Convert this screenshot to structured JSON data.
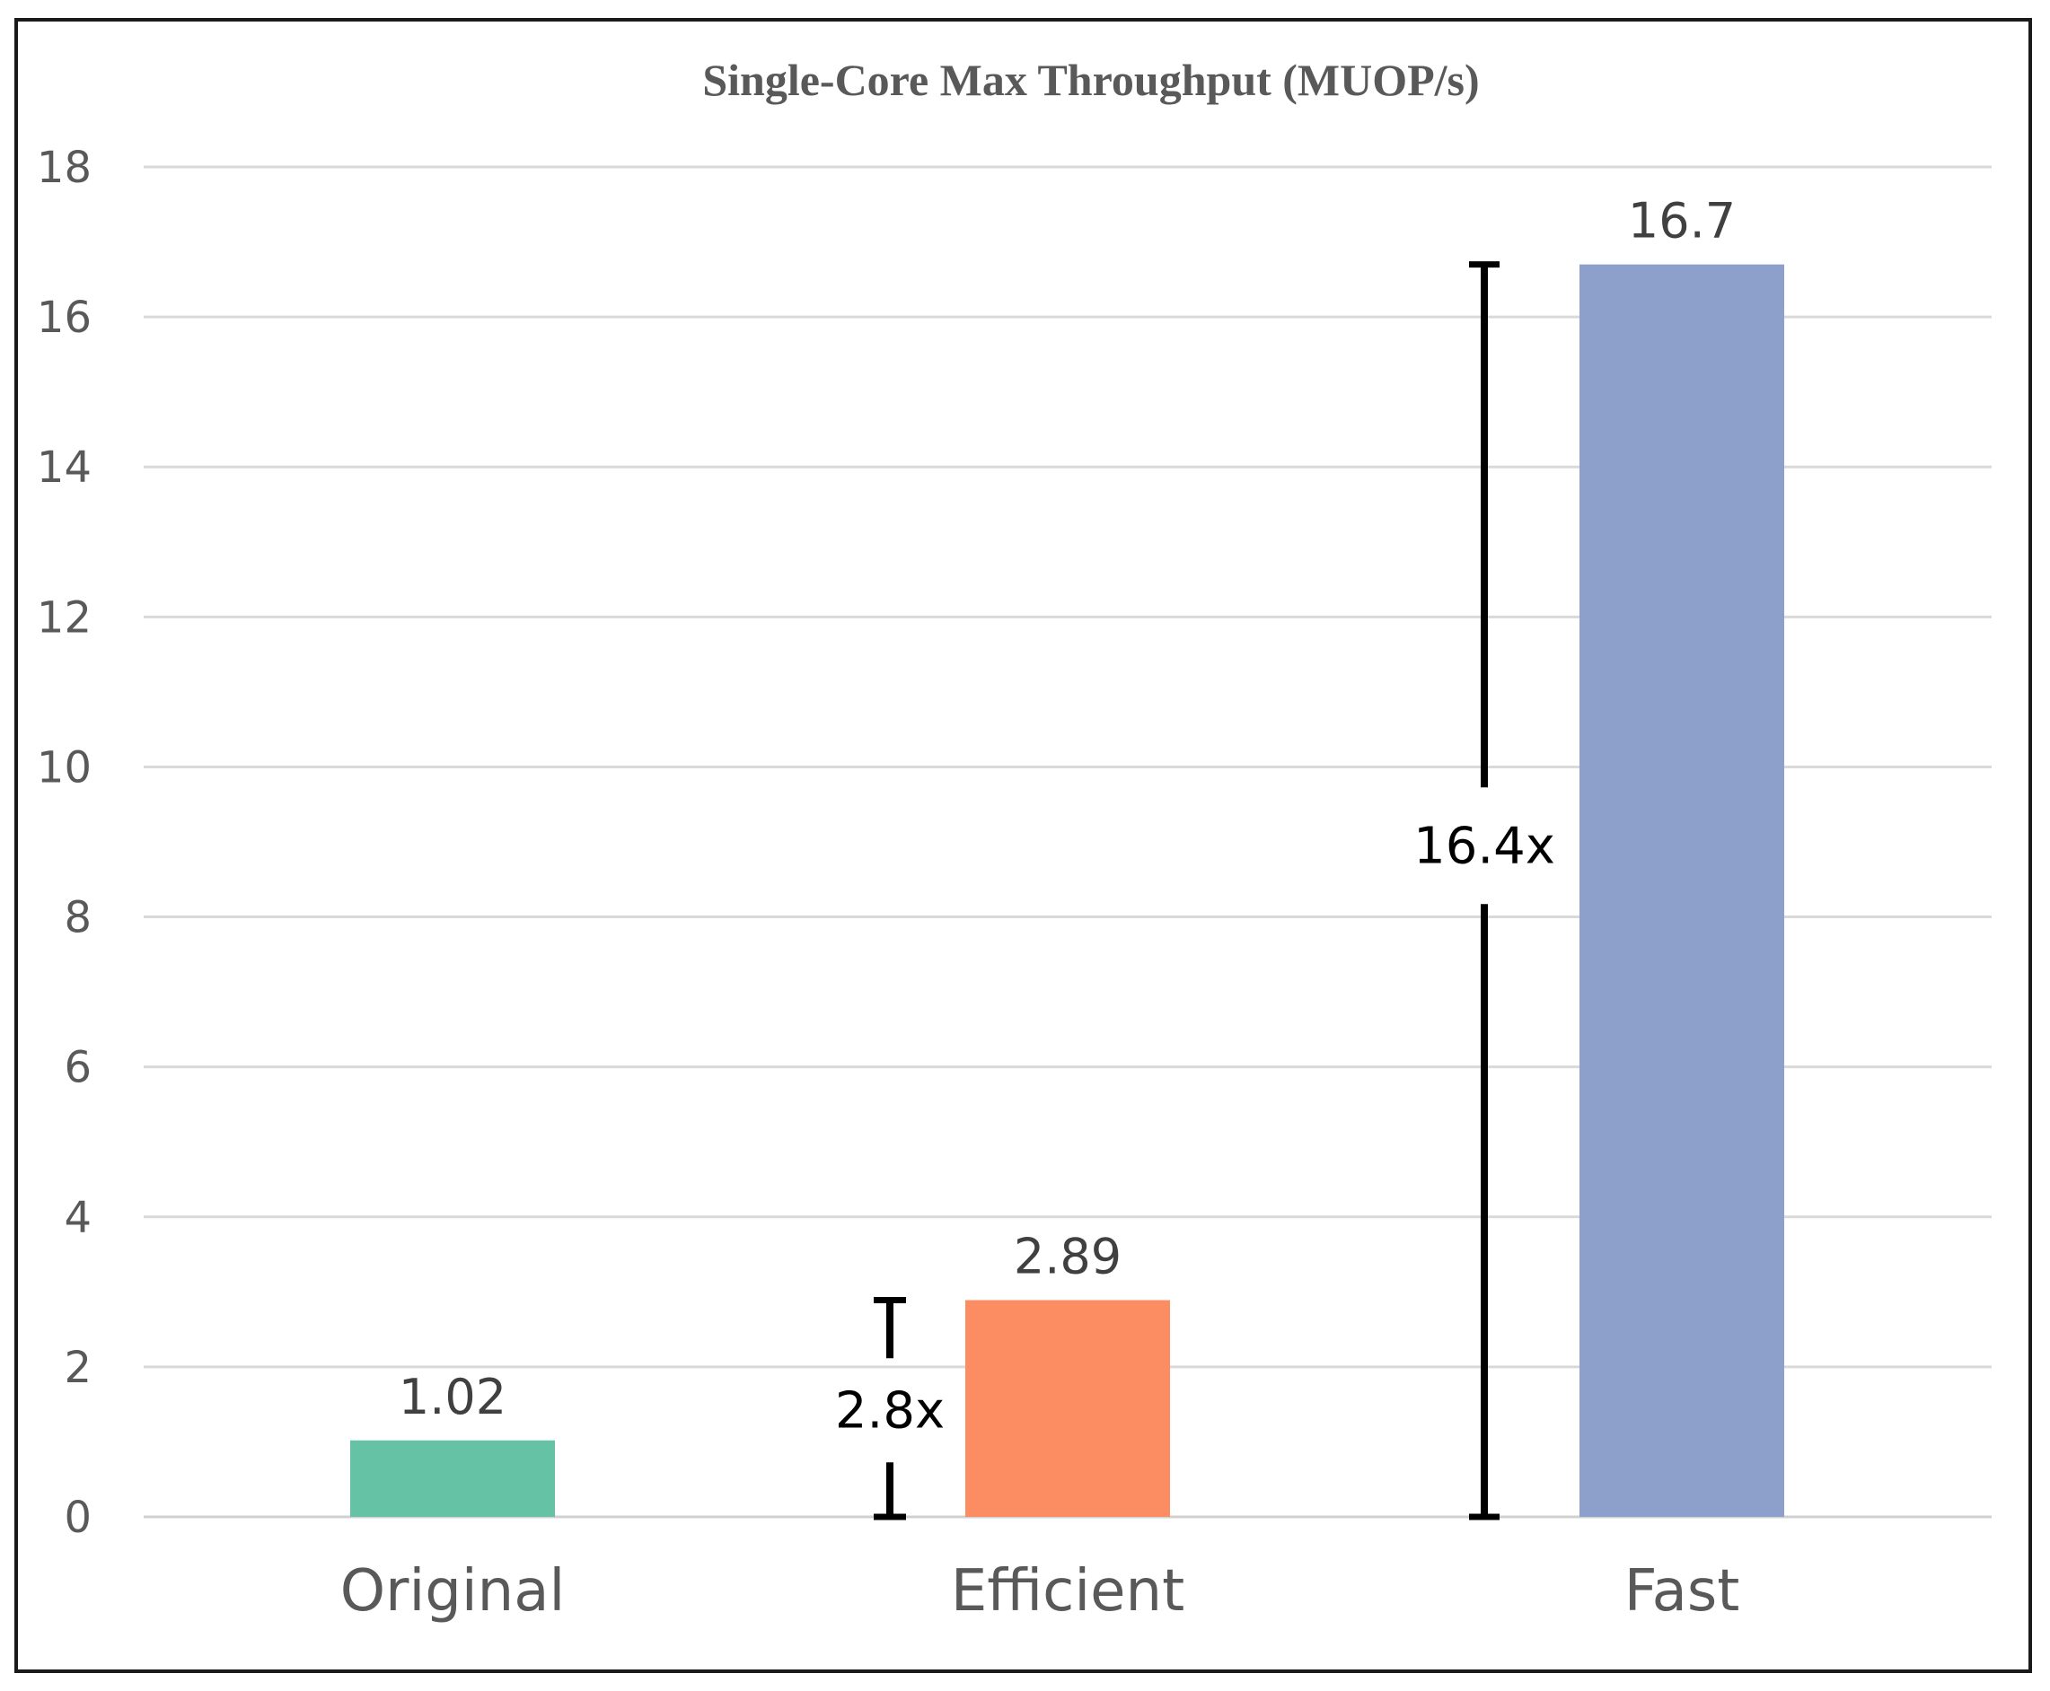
{
  "chart_data": {
    "type": "bar",
    "title": "Single-Core Max Throughput (MUOP/s)",
    "categories": [
      "Original",
      "Efficient",
      "Fast"
    ],
    "values": [
      1.02,
      2.89,
      16.7
    ],
    "value_labels": [
      "1.02",
      "2.89",
      "16.7"
    ],
    "colors": [
      "#66c2a5",
      "#fc8d62",
      "#8da0cb"
    ],
    "xlabel": "",
    "ylabel": "",
    "ylim": [
      0,
      18
    ],
    "yticks": [
      0,
      2,
      4,
      6,
      8,
      10,
      12,
      14,
      16,
      18
    ],
    "grid": true,
    "legend": "none",
    "annotations": [
      {
        "label": "2.8x",
        "from": 0,
        "to": 2.89,
        "beside": "Efficient"
      },
      {
        "label": "16.4x",
        "from": 0,
        "to": 16.7,
        "beside": "Fast"
      }
    ]
  }
}
